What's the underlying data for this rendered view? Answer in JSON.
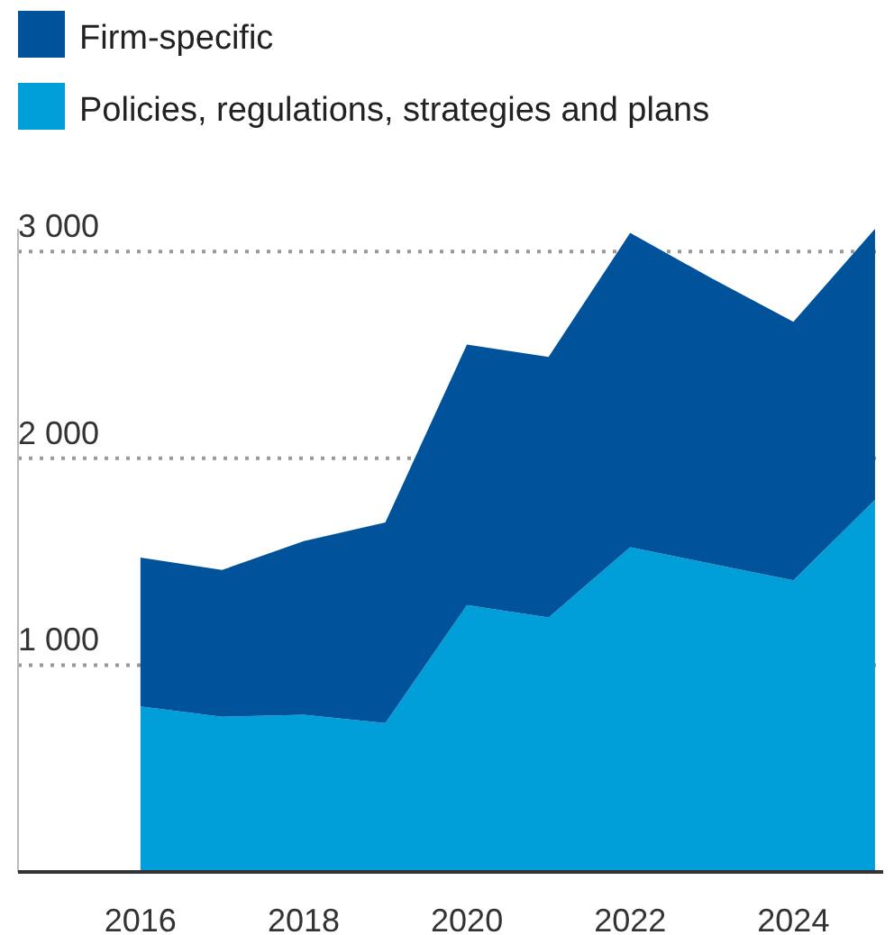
{
  "chart_data": {
    "type": "area",
    "stacked": true,
    "x": [
      2016,
      2017,
      2018,
      2019,
      2020,
      2021,
      2022,
      2023,
      2024,
      2025
    ],
    "series": [
      {
        "name": "Policies, regulations, strategies and plans",
        "color": "#009fda",
        "values": [
          800,
          750,
          760,
          720,
          1290,
          1230,
          1570,
          1490,
          1410,
          1800
        ]
      },
      {
        "name": "Firm-specific",
        "color": "#00539b",
        "values": [
          720,
          710,
          840,
          970,
          1260,
          1260,
          1520,
          1380,
          1250,
          1310
        ]
      }
    ],
    "xlim": [
      2014.5,
      2025.1
    ],
    "xticks": [
      2016,
      2018,
      2020,
      2022,
      2024
    ],
    "ylim": [
      0,
      3110
    ],
    "yticks": [
      {
        "value": 1000,
        "label": "1 000"
      },
      {
        "value": 2000,
        "label": "2 000"
      },
      {
        "value": 3000,
        "label": "3 000"
      }
    ],
    "grid": "y",
    "legend": "top left"
  }
}
